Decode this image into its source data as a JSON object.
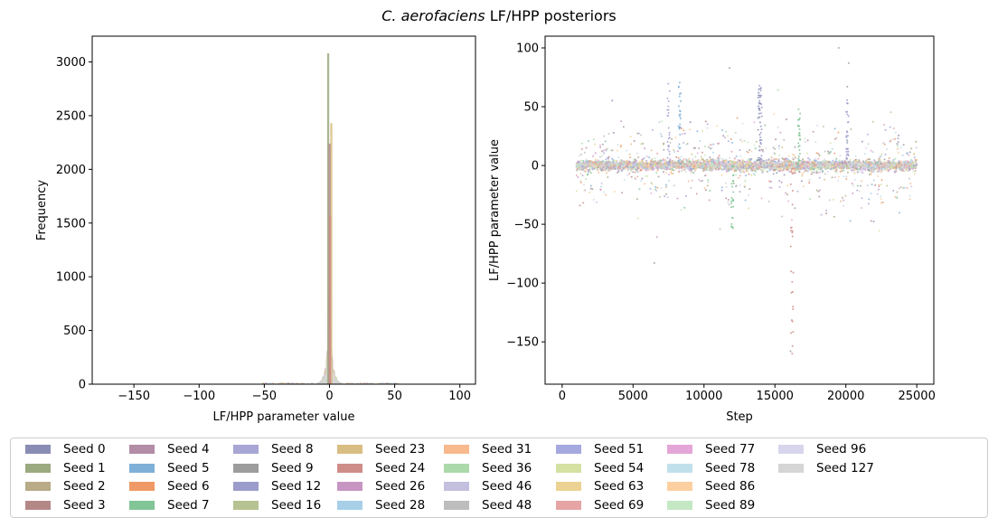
{
  "title_species": "C. aerofaciens",
  "title_rest": "LF/HPP posteriors",
  "chart_data": [
    {
      "type": "histogram",
      "xlabel": "LF/HPP parameter value",
      "ylabel": "Frequency",
      "xlim": [
        -182,
        112
      ],
      "ylim": [
        0,
        3240
      ],
      "xticks": [
        -150,
        -100,
        -50,
        0,
        50,
        100
      ],
      "yticks": [
        0,
        500,
        1000,
        1500,
        2000,
        2500,
        3000
      ],
      "peak_counts": {
        "Seed 1": 3080,
        "Seed 23": 2430,
        "Seed 3": 2240,
        "Seed 24": 1560
      },
      "grid": false
    },
    {
      "type": "scatter",
      "xlabel": "Step",
      "ylabel": "LF/HPP parameter value",
      "xlim": [
        -1200,
        26200
      ],
      "ylim": [
        -186,
        110
      ],
      "xticks": [
        0,
        5000,
        10000,
        15000,
        20000,
        25000
      ],
      "yticks": [
        -150,
        -100,
        -50,
        0,
        50,
        100
      ],
      "step_range": [
        1000,
        25000
      ],
      "grid": false
    }
  ],
  "legend": {
    "placement": "bottom",
    "columns": 9,
    "items": [
      {
        "label": "Seed 0",
        "color": "#8a8db3"
      },
      {
        "label": "Seed 1",
        "color": "#9caa80"
      },
      {
        "label": "Seed 2",
        "color": "#b9aa88"
      },
      {
        "label": "Seed 3",
        "color": "#b58888"
      },
      {
        "label": "Seed 4",
        "color": "#b38ca6"
      },
      {
        "label": "Seed 5",
        "color": "#7fb0d8"
      },
      {
        "label": "Seed 6",
        "color": "#ef9a66"
      },
      {
        "label": "Seed 7",
        "color": "#82c596"
      },
      {
        "label": "Seed 8",
        "color": "#a8a6d4"
      },
      {
        "label": "Seed 9",
        "color": "#9d9d9d"
      },
      {
        "label": "Seed 12",
        "color": "#9c9ccc"
      },
      {
        "label": "Seed 16",
        "color": "#b6c291"
      },
      {
        "label": "Seed 23",
        "color": "#d9be83"
      },
      {
        "label": "Seed 24",
        "color": "#cf8d8a"
      },
      {
        "label": "Seed 26",
        "color": "#c795c2"
      },
      {
        "label": "Seed 28",
        "color": "#a7cfe8"
      },
      {
        "label": "Seed 31",
        "color": "#f8b98c"
      },
      {
        "label": "Seed 36",
        "color": "#acd9aa"
      },
      {
        "label": "Seed 46",
        "color": "#c3bfdf"
      },
      {
        "label": "Seed 48",
        "color": "#bdbdbd"
      },
      {
        "label": "Seed 51",
        "color": "#a5a9df"
      },
      {
        "label": "Seed 54",
        "color": "#d4e1a2"
      },
      {
        "label": "Seed 63",
        "color": "#ecd393"
      },
      {
        "label": "Seed 69",
        "color": "#e6a4a5"
      },
      {
        "label": "Seed 77",
        "color": "#e3a6d7"
      },
      {
        "label": "Seed 78",
        "color": "#c1e0ec"
      },
      {
        "label": "Seed 86",
        "color": "#fccfa1"
      },
      {
        "label": "Seed 89",
        "color": "#c4e8c3"
      },
      {
        "label": "Seed 96",
        "color": "#d7d5ec"
      },
      {
        "label": "Seed 127",
        "color": "#d5d5d5"
      }
    ]
  }
}
